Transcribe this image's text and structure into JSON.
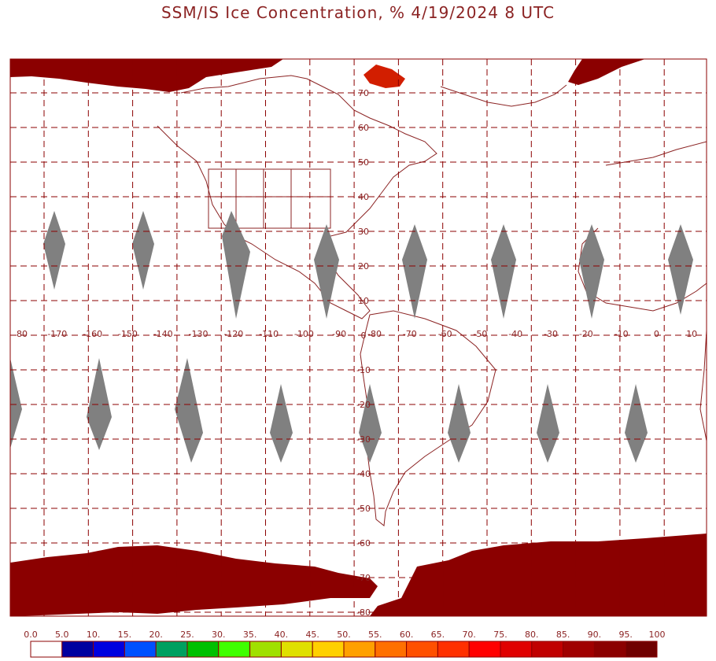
{
  "title": "SSM/IS Ice Concentration, % 4/19/2024 8 UTC",
  "map": {
    "grid_color": "#8b0000",
    "lon_labels": [
      "80",
      "-170",
      "-160",
      "-150",
      "-140",
      "-130",
      "-120",
      "-110",
      "-100",
      "-90",
      "-80",
      "-70",
      "-60",
      "-50",
      "-40",
      "-30",
      "-20",
      "-10",
      "0",
      "10"
    ],
    "lat_labels": [
      "70",
      "60",
      "50",
      "40",
      "30",
      "20",
      "10",
      "0",
      "-10",
      "-20",
      "-30",
      "-40",
      "-50",
      "-60",
      "-70",
      "-80"
    ],
    "swath_gap_color": "#808080",
    "ice_colors": [
      "#8b0000",
      "#b00000",
      "#d21e00"
    ]
  },
  "colorbar": {
    "labels": [
      "0.0",
      "5.0",
      "10.",
      "15.",
      "20.",
      "25.",
      "30.",
      "35.",
      "40.",
      "45.",
      "50.",
      "55.",
      "60.",
      "65.",
      "70.",
      "75.",
      "80.",
      "85.",
      "90.",
      "95.",
      "100"
    ],
    "colors": [
      "#ffffff",
      "#0000a0",
      "#0000e0",
      "#0050ff",
      "#00a060",
      "#00c000",
      "#40ff00",
      "#a0e000",
      "#e0e000",
      "#ffd000",
      "#ffa000",
      "#ff7000",
      "#ff5000",
      "#ff3000",
      "#ff0000",
      "#e00000",
      "#c00000",
      "#a00000",
      "#8b0000",
      "#700000"
    ]
  }
}
